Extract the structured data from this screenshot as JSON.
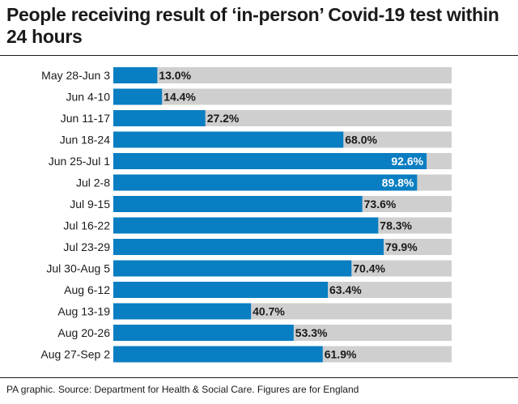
{
  "title": "People receiving result of ‘in-person’ Covid-19 test within 24 hours",
  "source": "PA graphic. Source: Department for Health & Social Care. Figures are for England",
  "colors": {
    "bar": "#0a7ec2",
    "track": "#cfcfcf",
    "text": "#1a1a1a",
    "label_inside": "#ffffff"
  },
  "chart_data": {
    "type": "bar",
    "orientation": "horizontal",
    "categories": [
      "May 28-Jun 3",
      "Jun 4-10",
      "Jun 11-17",
      "Jun 18-24",
      "Jun 25-Jul 1",
      "Jul 2-8",
      "Jul 9-15",
      "Jul 16-22",
      "Jul 23-29",
      "Jul 30-Aug 5",
      "Aug 6-12",
      "Aug 13-19",
      "Aug 20-26",
      "Aug 27-Sep 2"
    ],
    "values": [
      13.0,
      14.4,
      27.2,
      68.0,
      92.6,
      89.8,
      73.6,
      78.3,
      79.9,
      70.4,
      63.4,
      40.7,
      53.3,
      61.9
    ],
    "value_labels": [
      "13.0%",
      "14.4%",
      "27.2%",
      "68.0%",
      "92.6%",
      "89.8%",
      "73.6%",
      "78.3%",
      "79.9%",
      "70.4%",
      "63.4%",
      "40.7%",
      "53.3%",
      "61.9%"
    ],
    "xlim": [
      0,
      100
    ],
    "grid": false,
    "legend": "none"
  }
}
